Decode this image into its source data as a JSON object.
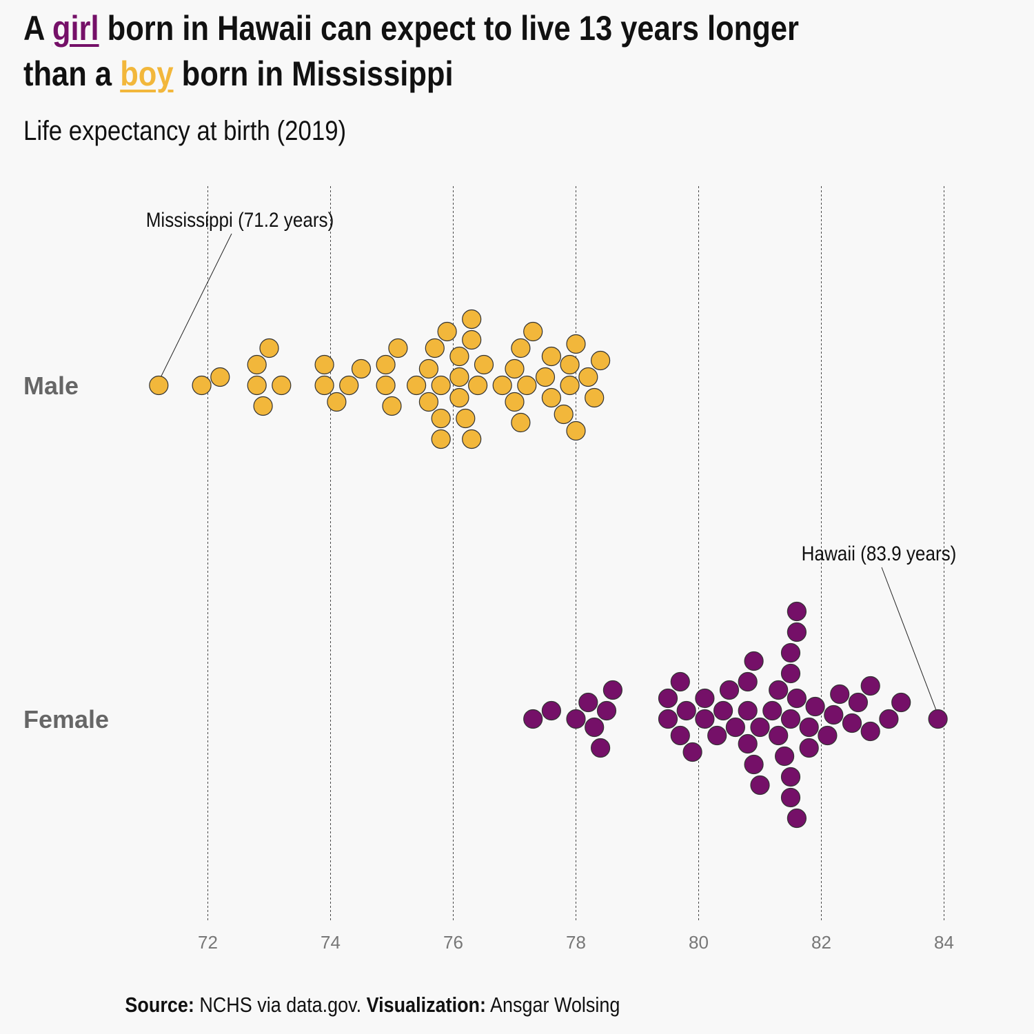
{
  "header": {
    "title_part1": "A ",
    "title_girl": "girl",
    "title_part2": " born in Hawaii can expect to live 13 years longer",
    "title_part3": "than a ",
    "title_boy": "boy",
    "title_part4": " born in Mississippi",
    "subtitle": "Life expectancy at birth (2019)"
  },
  "footer": {
    "source_label": "Source:",
    "source_text": " NCHS via data.gov. ",
    "viz_label": "Visualization:",
    "viz_text": " Ansgar Wolsing"
  },
  "colors": {
    "male": "#f2b73b",
    "female": "#751068",
    "background": "#f8f8f8"
  },
  "chart_data": {
    "type": "scatter",
    "subtype": "beeswarm",
    "xlim": [
      70.8,
      85.2
    ],
    "x_ticks": [
      72,
      74,
      76,
      78,
      80,
      82,
      84
    ],
    "grid": "vertical dashed at ticks",
    "categories": [
      "Male",
      "Female"
    ],
    "series": [
      {
        "name": "Male",
        "values": [
          71.2,
          71.9,
          72.2,
          72.8,
          72.8,
          72.9,
          73.0,
          73.2,
          73.9,
          73.9,
          74.1,
          74.3,
          74.5,
          74.9,
          74.9,
          75.0,
          75.1,
          75.4,
          75.6,
          75.6,
          75.7,
          75.8,
          75.8,
          75.8,
          75.9,
          76.1,
          76.1,
          76.1,
          76.2,
          76.3,
          76.3,
          76.3,
          76.4,
          76.5,
          76.8,
          77.0,
          77.0,
          77.1,
          77.1,
          77.2,
          77.3,
          77.5,
          77.6,
          77.6,
          77.8,
          77.9,
          77.9,
          78.0,
          78.0,
          78.2,
          78.3,
          78.4
        ]
      },
      {
        "name": "Female",
        "values": [
          77.3,
          77.6,
          78.0,
          78.2,
          78.3,
          78.4,
          78.5,
          78.6,
          79.5,
          79.5,
          79.7,
          79.7,
          79.8,
          79.9,
          80.1,
          80.1,
          80.3,
          80.4,
          80.5,
          80.6,
          80.8,
          80.8,
          80.8,
          80.9,
          80.9,
          81.0,
          81.0,
          81.2,
          81.3,
          81.3,
          81.4,
          81.5,
          81.5,
          81.5,
          81.5,
          81.5,
          81.6,
          81.6,
          81.6,
          81.6,
          81.8,
          81.8,
          81.9,
          82.1,
          82.2,
          82.3,
          82.5,
          82.6,
          82.8,
          82.8,
          83.1,
          83.3,
          83.9
        ]
      }
    ],
    "annotations": [
      {
        "label": "Mississippi (71.2 years)",
        "series": "Male",
        "x": 71.2
      },
      {
        "label": "Hawaii (83.9 years)",
        "series": "Female",
        "x": 83.9
      }
    ]
  }
}
